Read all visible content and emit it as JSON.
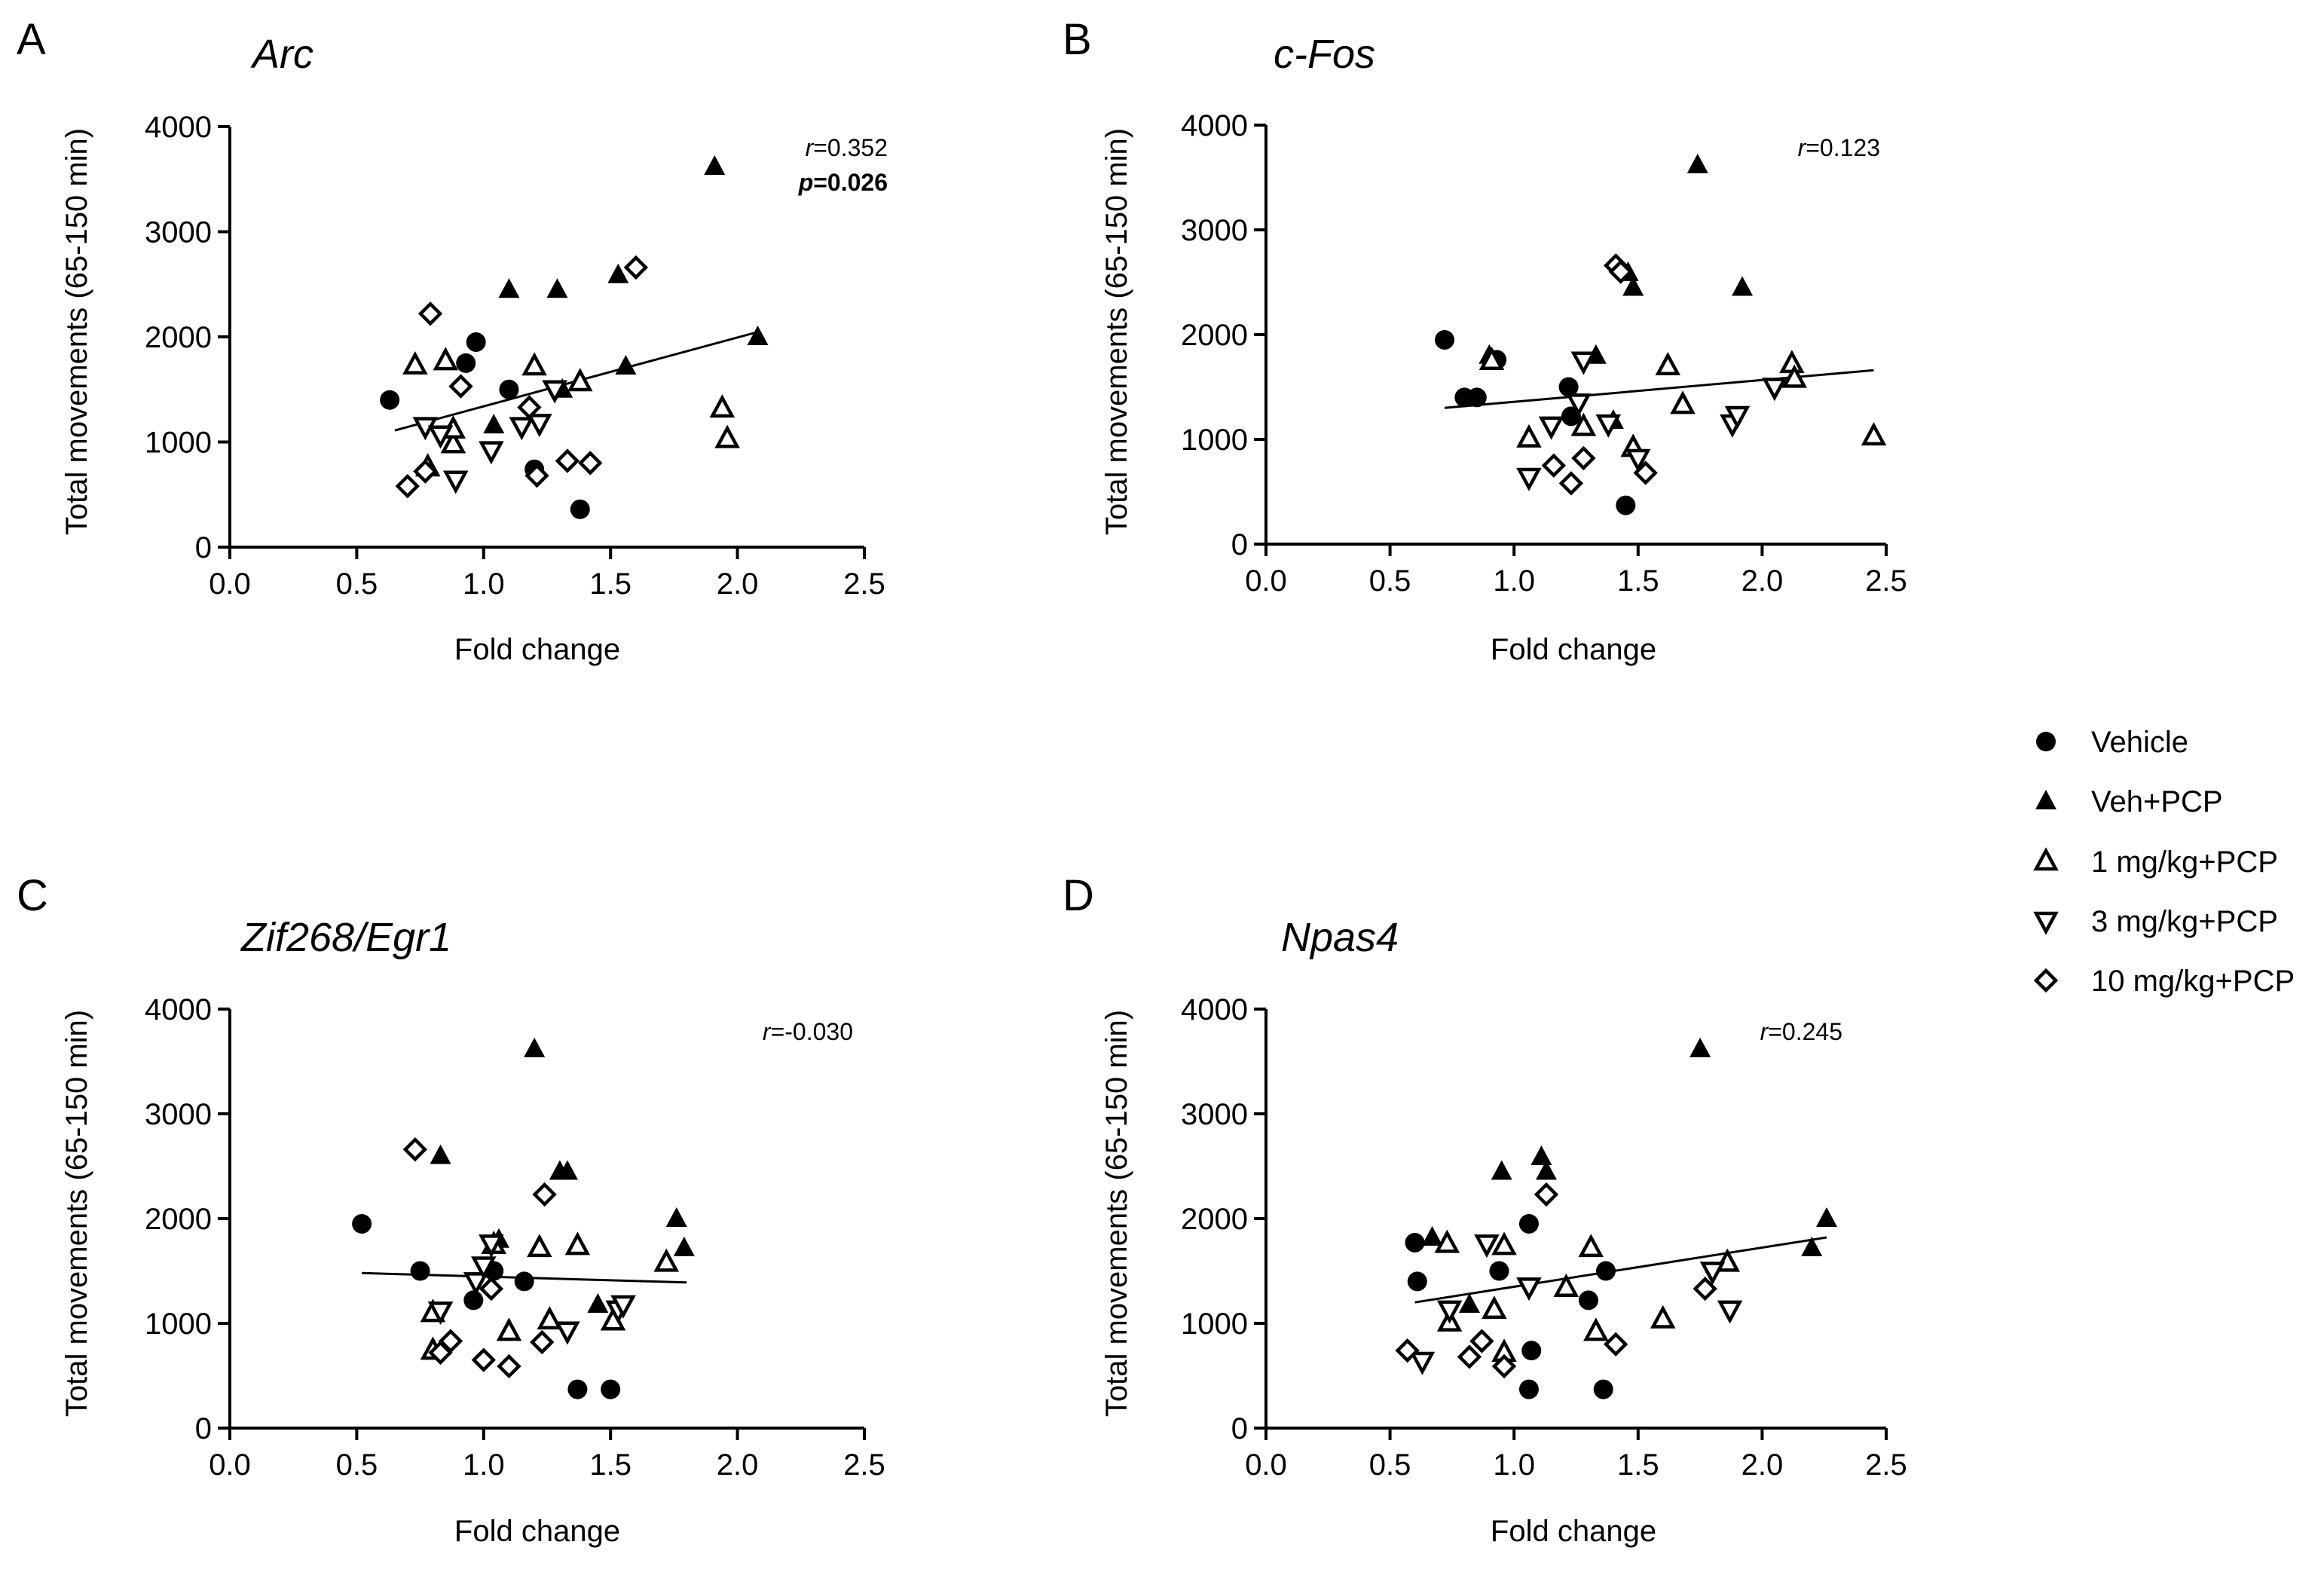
{
  "legend": [
    {
      "key": "vehicle",
      "label": "Vehicle"
    },
    {
      "key": "veh_pcp",
      "label": "Veh+PCP"
    },
    {
      "key": "mg1",
      "label": "1 mg/kg+PCP"
    },
    {
      "key": "mg3",
      "label": "3 mg/kg+PCP"
    },
    {
      "key": "mg10",
      "label": "10 mg/kg+PCP"
    }
  ],
  "chart_data": [
    {
      "type": "scatter",
      "panel": "A",
      "title": "Arc",
      "xlabel": "Fold change",
      "ylabel": "Total movements (65-150 min)",
      "xlim": [
        0,
        2.5
      ],
      "ylim": [
        0,
        4000
      ],
      "xticks": [
        "0.0",
        "0.5",
        "1.0",
        "1.5",
        "2.0",
        "2.5"
      ],
      "yticks": [
        "0",
        "1000",
        "2000",
        "3000",
        "4000"
      ],
      "r_label": "r",
      "r_value": "=0.352",
      "p_label": "p",
      "p_value": "=0.026",
      "fit": {
        "x": [
          0.65,
          2.07
        ],
        "y": [
          1110,
          2040
        ]
      },
      "series": [
        {
          "name": "Vehicle",
          "x": [
            0.63,
            0.93,
            0.97,
            1.1,
            1.2,
            1.38
          ],
          "y": [
            1400,
            1750,
            1950,
            1500,
            740,
            360
          ]
        },
        {
          "name": "Veh+PCP",
          "x": [
            1.91,
            1.1,
            1.29,
            1.53,
            2.08,
            1.56,
            1.04,
            1.31
          ],
          "y": [
            3620,
            2450,
            2450,
            2590,
            2000,
            1720,
            1160,
            1500
          ]
        },
        {
          "name": "1 mg/kg+PCP",
          "x": [
            0.73,
            0.85,
            1.2,
            1.38,
            1.94,
            1.96,
            0.88,
            0.88,
            0.78
          ],
          "y": [
            1730,
            1770,
            1720,
            1570,
            1320,
            1030,
            980,
            1120,
            760
          ]
        },
        {
          "name": "3 mg/kg+PCP",
          "x": [
            0.77,
            0.83,
            0.89,
            1.03,
            1.15,
            1.22,
            1.28
          ],
          "y": [
            1150,
            1070,
            640,
            920,
            1150,
            1180,
            1500
          ]
        },
        {
          "name": "10 mg/kg+PCP",
          "x": [
            0.79,
            0.91,
            1.18,
            1.21,
            1.33,
            1.42,
            1.6,
            0.7,
            0.77
          ],
          "y": [
            2220,
            1530,
            1330,
            680,
            820,
            800,
            2660,
            580,
            720
          ]
        }
      ]
    },
    {
      "type": "scatter",
      "panel": "B",
      "title": "c-Fos",
      "xlabel": "Fold change",
      "ylabel": "Total movements (65-150 min)",
      "xlim": [
        0,
        2.5
      ],
      "ylim": [
        0,
        4000
      ],
      "xticks": [
        "0.0",
        "0.5",
        "1.0",
        "1.5",
        "2.0",
        "2.5"
      ],
      "yticks": [
        "0",
        "1000",
        "2000",
        "3000",
        "4000"
      ],
      "r_label": "r",
      "r_value": "=0.123",
      "fit": {
        "x": [
          0.72,
          2.45
        ],
        "y": [
          1300,
          1660
        ]
      },
      "series": [
        {
          "name": "Vehicle",
          "x": [
            0.72,
            0.8,
            0.85,
            0.93,
            1.22,
            1.23,
            1.45
          ],
          "y": [
            1950,
            1400,
            1400,
            1760,
            1500,
            1220,
            370
          ]
        },
        {
          "name": "Veh+PCP",
          "x": [
            1.74,
            1.46,
            1.48,
            1.92,
            1.33,
            0.9,
            1.4
          ],
          "y": [
            3620,
            2590,
            2450,
            2450,
            1800,
            1800,
            1180
          ]
        },
        {
          "name": "1 mg/kg+PCP",
          "x": [
            0.91,
            1.06,
            1.28,
            1.62,
            1.68,
            2.12,
            2.13,
            2.45,
            1.48
          ],
          "y": [
            1750,
            1010,
            1120,
            1700,
            1330,
            1720,
            1580,
            1030,
            920
          ]
        },
        {
          "name": "3 mg/kg+PCP",
          "x": [
            1.06,
            1.15,
            1.26,
            1.28,
            1.38,
            1.5,
            1.88,
            1.9,
            2.05
          ],
          "y": [
            640,
            1130,
            1350,
            1750,
            1150,
            820,
            1150,
            1230,
            1500
          ]
        },
        {
          "name": "10 mg/kg+PCP",
          "x": [
            1.41,
            1.43,
            1.16,
            1.23,
            1.28,
            1.53
          ],
          "y": [
            2660,
            2600,
            750,
            580,
            820,
            680
          ]
        }
      ]
    },
    {
      "type": "scatter",
      "panel": "C",
      "title": "Zif268/Egr1",
      "xlabel": "Fold change",
      "ylabel": "Total movements (65-150 min)",
      "xlim": [
        0,
        2.5
      ],
      "ylim": [
        0,
        4000
      ],
      "xticks": [
        "0.0",
        "0.5",
        "1.0",
        "1.5",
        "2.0",
        "2.5"
      ],
      "yticks": [
        "0",
        "1000",
        "2000",
        "3000",
        "4000"
      ],
      "r_label": "r",
      "r_value": "=-0.030",
      "fit": {
        "x": [
          0.52,
          1.8
        ],
        "y": [
          1480,
          1390
        ]
      },
      "series": [
        {
          "name": "Vehicle",
          "x": [
            0.52,
            0.75,
            0.96,
            1.04,
            1.16,
            1.37,
            1.5
          ],
          "y": [
            1950,
            1500,
            1220,
            1500,
            1400,
            370,
            370
          ]
        },
        {
          "name": "Veh+PCP",
          "x": [
            1.2,
            0.83,
            1.3,
            1.33,
            1.06,
            1.76,
            1.79,
            1.45
          ],
          "y": [
            3620,
            2600,
            2450,
            2450,
            1800,
            2000,
            1720,
            1180
          ]
        },
        {
          "name": "1 mg/kg+PCP",
          "x": [
            0.8,
            1.04,
            1.22,
            1.37,
            1.72,
            1.26,
            1.51,
            1.1,
            0.8
          ],
          "y": [
            1100,
            1750,
            1720,
            1740,
            1580,
            1030,
            1020,
            920,
            740
          ]
        },
        {
          "name": "3 mg/kg+PCP",
          "x": [
            0.83,
            0.97,
            1.0,
            1.03,
            1.33,
            1.53,
            1.55
          ],
          "y": [
            1120,
            1400,
            1550,
            1760,
            930,
            1130,
            1180
          ]
        },
        {
          "name": "10 mg/kg+PCP",
          "x": [
            0.73,
            1.24,
            0.87,
            0.83,
            1.0,
            1.1,
            1.23,
            1.03
          ],
          "y": [
            2660,
            2230,
            830,
            720,
            650,
            590,
            820,
            1330
          ]
        }
      ]
    },
    {
      "type": "scatter",
      "panel": "D",
      "title": "Npas4",
      "xlabel": "Fold change",
      "ylabel": "Total movements (65-150 min)",
      "xlim": [
        0,
        2.5
      ],
      "ylim": [
        0,
        4000
      ],
      "xticks": [
        "0.0",
        "0.5",
        "1.0",
        "1.5",
        "2.0",
        "2.5"
      ],
      "yticks": [
        "0",
        "1000",
        "2000",
        "3000",
        "4000"
      ],
      "r_label": "r",
      "r_value": "=0.245",
      "fit": {
        "x": [
          0.6,
          2.26
        ],
        "y": [
          1200,
          1820
        ]
      },
      "series": [
        {
          "name": "Vehicle",
          "x": [
            0.6,
            0.61,
            0.94,
            1.06,
            1.07,
            1.3,
            1.37,
            1.06,
            1.36
          ],
          "y": [
            1770,
            1400,
            1500,
            1950,
            740,
            1220,
            1500,
            370,
            370
          ]
        },
        {
          "name": "Veh+PCP",
          "x": [
            1.75,
            0.95,
            1.11,
            1.13,
            2.26,
            2.2,
            0.67,
            0.82
          ],
          "y": [
            3620,
            2450,
            2590,
            2450,
            2000,
            1720,
            1820,
            1180
          ]
        },
        {
          "name": "1 mg/kg+PCP",
          "x": [
            0.73,
            0.96,
            1.31,
            1.21,
            1.86,
            0.92,
            1.6,
            1.33,
            0.74,
            0.96
          ],
          "y": [
            1760,
            1740,
            1720,
            1340,
            1580,
            1130,
            1040,
            920,
            1010,
            720
          ]
        },
        {
          "name": "3 mg/kg+PCP",
          "x": [
            0.63,
            0.74,
            0.89,
            1.06,
            1.8,
            1.87
          ],
          "y": [
            640,
            1130,
            1760,
            1350,
            1500,
            1130
          ]
        },
        {
          "name": "10 mg/kg+PCP",
          "x": [
            0.57,
            0.82,
            0.87,
            0.96,
            1.13,
            1.41,
            1.77
          ],
          "y": [
            740,
            680,
            830,
            590,
            2230,
            800,
            1330
          ]
        }
      ]
    }
  ]
}
